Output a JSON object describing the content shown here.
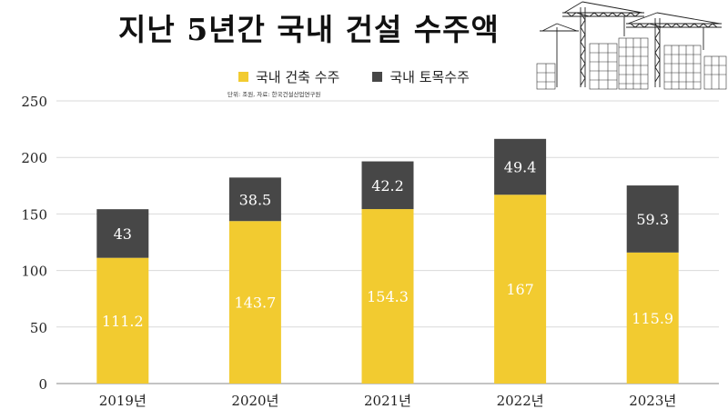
{
  "chart_data": {
    "type": "bar",
    "stacked": true,
    "title": "지난 5년간 국내 건설 수주액",
    "source": "단위: 조원, 자료: 한국건설산업연구원",
    "categories": [
      "2019년",
      "2020년",
      "2021년",
      "2022년",
      "2023년"
    ],
    "series": [
      {
        "name": "국내 건축 수주",
        "color": "#f2cb30",
        "values": [
          111.2,
          143.7,
          154.3,
          167,
          115.9
        ],
        "labels": [
          "111.2",
          "143.7",
          "154.3",
          "167",
          "115.9"
        ]
      },
      {
        "name": "국내 토목수주",
        "color": "#474747",
        "values": [
          43,
          38.5,
          42.2,
          49.4,
          59.3
        ],
        "labels": [
          "43",
          "38.5",
          "42.2",
          "49.4",
          "59.3"
        ]
      }
    ],
    "yticks": [
      "0",
      "50",
      "100",
      "150",
      "200",
      "250"
    ],
    "ylim": [
      0,
      250
    ],
    "grid": true,
    "legend_position": "top"
  }
}
